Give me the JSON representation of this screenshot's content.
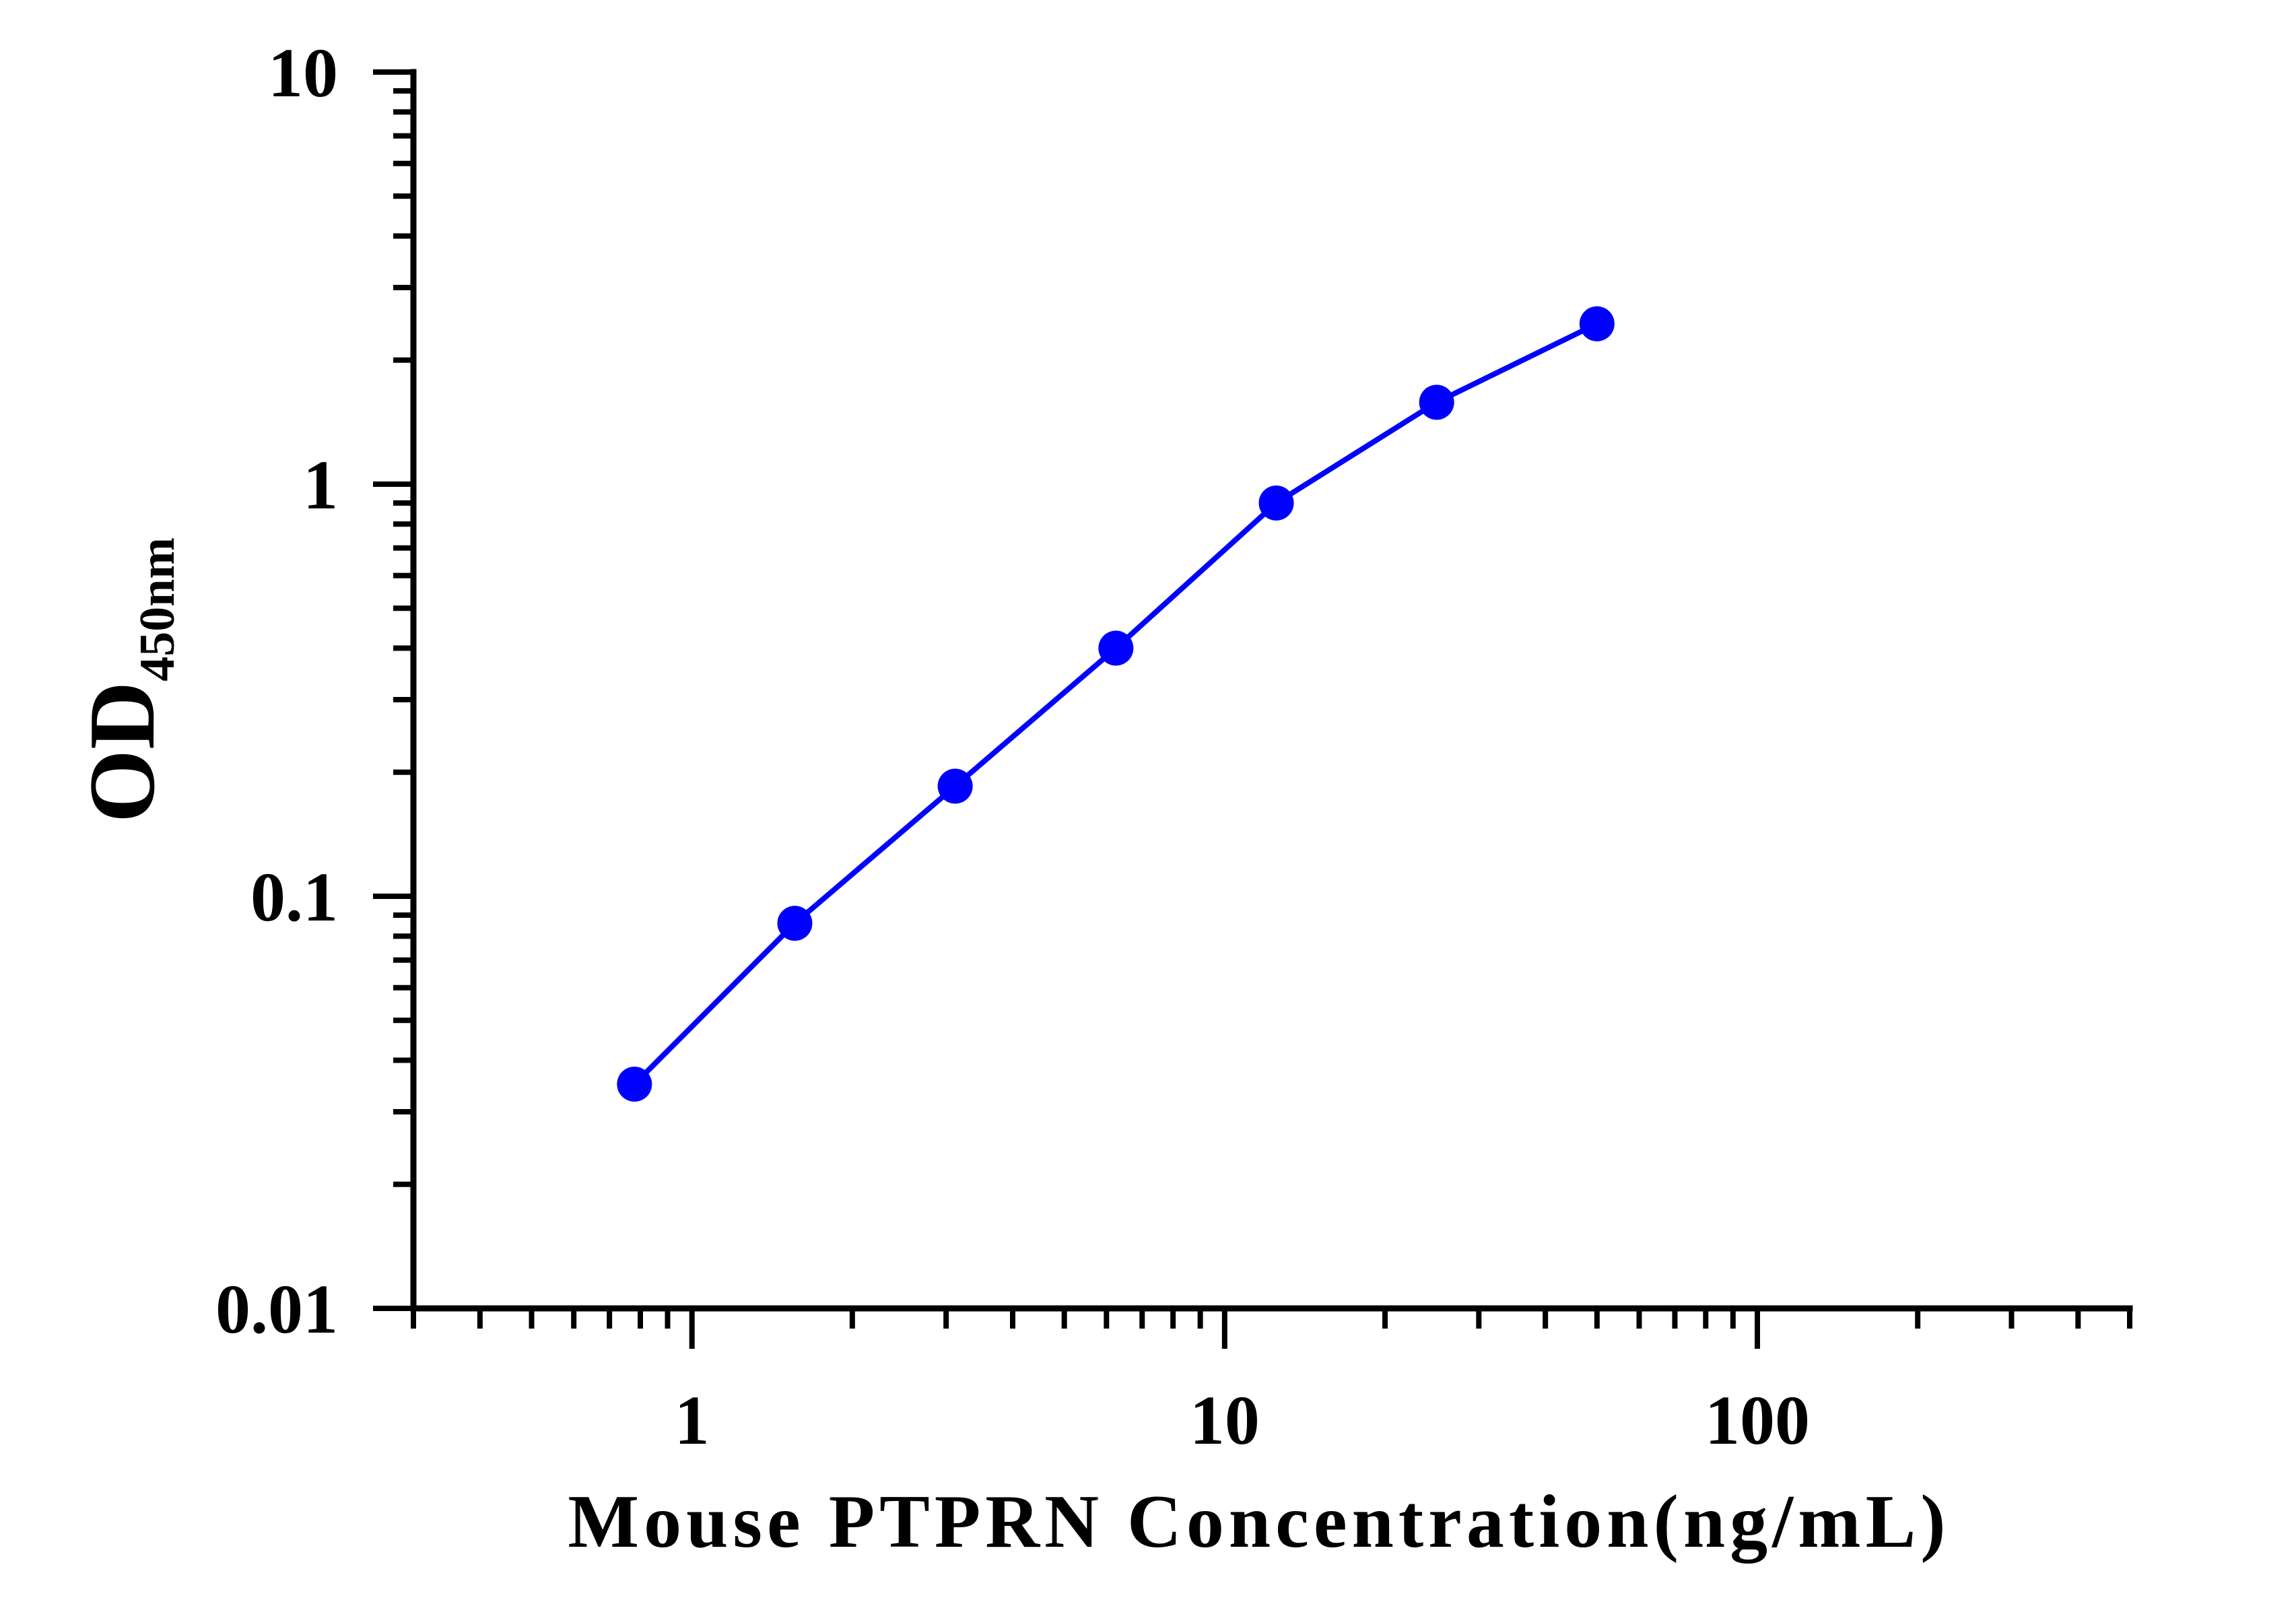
{
  "chart_data": {
    "type": "line",
    "title": "",
    "xlabel": "Mouse PTPRN Concentration(ng/mL)",
    "ylabel": "OD",
    "ylabel_subscript": "450nm",
    "x_scale": "log",
    "y_scale": "log",
    "xlim": [
      0.3,
      500
    ],
    "ylim": [
      0.01,
      10
    ],
    "x_ticks": [
      1,
      10,
      100
    ],
    "x_tick_labels": [
      "1",
      "10",
      "100"
    ],
    "y_ticks": [
      0.01,
      0.1,
      1,
      10
    ],
    "y_tick_labels": [
      "0.01",
      "0.1",
      "1",
      "10"
    ],
    "grid": false,
    "series": [
      {
        "color": "#0000ff",
        "marker": "circle",
        "x": [
          0.78,
          1.56,
          3.12,
          6.25,
          12.5,
          25,
          50
        ],
        "y": [
          0.035,
          0.086,
          0.185,
          0.4,
          0.9,
          1.58,
          2.45
        ]
      }
    ]
  }
}
